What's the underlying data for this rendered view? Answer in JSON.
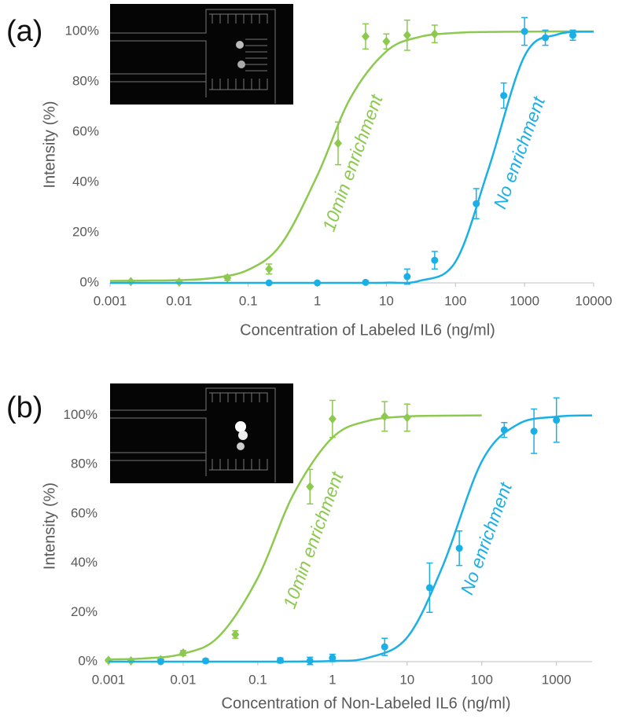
{
  "chart_data": [
    {
      "type": "scatter",
      "panel_label": "(a)",
      "xlabel": "Concentration of Labeled IL6  (ng/ml)",
      "ylabel": "Intensity (%)",
      "log_x": true,
      "xlim": [
        0.001,
        10000
      ],
      "xticks": [
        0.001,
        0.01,
        0.1,
        1,
        10,
        100,
        1000,
        10000
      ],
      "ylim": [
        0,
        110
      ],
      "yticks": [
        {
          "value": 0,
          "label": "0%"
        },
        {
          "value": 20,
          "label": "20%"
        },
        {
          "value": 40,
          "label": "40%"
        },
        {
          "value": 60,
          "label": "60%"
        },
        {
          "value": 80,
          "label": "80%"
        },
        {
          "value": 100,
          "label": "100%"
        }
      ],
      "series": [
        {
          "name": "10min  enrichment",
          "color": "#8cc94e",
          "marker": "diamond",
          "x": [
            0.002,
            0.01,
            0.05,
            0.2,
            2,
            5,
            10,
            20,
            50
          ],
          "values": [
            0.5,
            0.3,
            2,
            5.5,
            55.5,
            98,
            96,
            98.5,
            99
          ],
          "errors": [
            0.5,
            0.5,
            1,
            2,
            8.5,
            5,
            3,
            6,
            3.5
          ],
          "fit_x": [
            0.001,
            0.003,
            0.01,
            0.03,
            0.1,
            0.3,
            1,
            3,
            10,
            30,
            100,
            300,
            1000,
            3000,
            10000
          ],
          "fit_values": [
            0.8,
            0.9,
            1.1,
            1.9,
            5.2,
            15.4,
            42.7,
            73.4,
            92.1,
            97.8,
            99.4,
            99.8,
            99.9,
            100,
            100
          ]
        },
        {
          "name": "No enrichment",
          "color": "#1ab0e6",
          "marker": "circle",
          "x": [
            0.2,
            1,
            5,
            20,
            50,
            200,
            500,
            1000,
            2000,
            5000
          ],
          "values": [
            0,
            0,
            0.2,
            2.5,
            9,
            31.5,
            74.5,
            100,
            97.5,
            98.5
          ],
          "errors": [
            0.3,
            0.3,
            0.3,
            3,
            3.5,
            6,
            5,
            5.5,
            3,
            2
          ],
          "fit_x": [
            0.001,
            0.01,
            0.1,
            1,
            3,
            10,
            30,
            100,
            300,
            1000,
            3000,
            10000
          ],
          "fit_values": [
            0,
            0,
            0,
            0,
            0,
            0.09,
            0.8,
            8.4,
            45.2,
            90.2,
            98.8,
            99.9
          ]
        }
      ]
    },
    {
      "type": "scatter",
      "panel_label": "(b)",
      "xlabel": "Concentration of Non-Labeled IL6 (ng/ml)",
      "ylabel": "Intensity (%)",
      "log_x": true,
      "xlim": [
        0.001,
        3000
      ],
      "xticks": [
        0.001,
        0.01,
        0.1,
        1,
        10,
        100,
        1000
      ],
      "ylim": [
        0,
        110
      ],
      "yticks": [
        {
          "value": 0,
          "label": "0%"
        },
        {
          "value": 20,
          "label": "20%"
        },
        {
          "value": 40,
          "label": "40%"
        },
        {
          "value": 60,
          "label": "60%"
        },
        {
          "value": 80,
          "label": "80%"
        },
        {
          "value": 100,
          "label": "100%"
        }
      ],
      "series": [
        {
          "name": "10min  enrichment",
          "color": "#8cc94e",
          "marker": "diamond",
          "x": [
            0.001,
            0.002,
            0.005,
            0.01,
            0.05,
            0.5,
            1,
            5,
            10
          ],
          "values": [
            0.5,
            0.3,
            0.8,
            3.5,
            11,
            71,
            98.5,
            99.5,
            99
          ],
          "errors": [
            0.5,
            0.5,
            0.5,
            1,
            1.5,
            7,
            7.5,
            6,
            5.5
          ],
          "fit_x": [
            0.001,
            0.003,
            0.01,
            0.03,
            0.1,
            0.3,
            1,
            3,
            10,
            30,
            100
          ],
          "fit_values": [
            0.9,
            1.3,
            3.2,
            10.2,
            34,
            67.9,
            90.9,
            97.7,
            99.5,
            99.8,
            99.9
          ]
        },
        {
          "name": "No enrichment",
          "color": "#1ab0e6",
          "marker": "circle",
          "x": [
            0.005,
            0.02,
            0.2,
            0.5,
            1,
            5,
            20,
            50,
            200,
            500,
            1000
          ],
          "values": [
            0,
            0.3,
            0.5,
            0.3,
            1.5,
            6,
            30,
            46,
            94,
            93.5,
            98
          ],
          "errors": [
            0.3,
            0.8,
            1,
            1.5,
            1.5,
            3.5,
            10,
            7,
            3,
            9,
            9
          ],
          "fit_x": [
            0.001,
            0.01,
            0.1,
            0.3,
            1,
            3,
            10,
            30,
            100,
            300,
            1000,
            3000
          ],
          "fit_values": [
            0,
            0,
            0,
            0.04,
            0.27,
            1.56,
            9.8,
            38.8,
            81.2,
            96.2,
            99.4,
            99.9
          ]
        }
      ]
    }
  ]
}
